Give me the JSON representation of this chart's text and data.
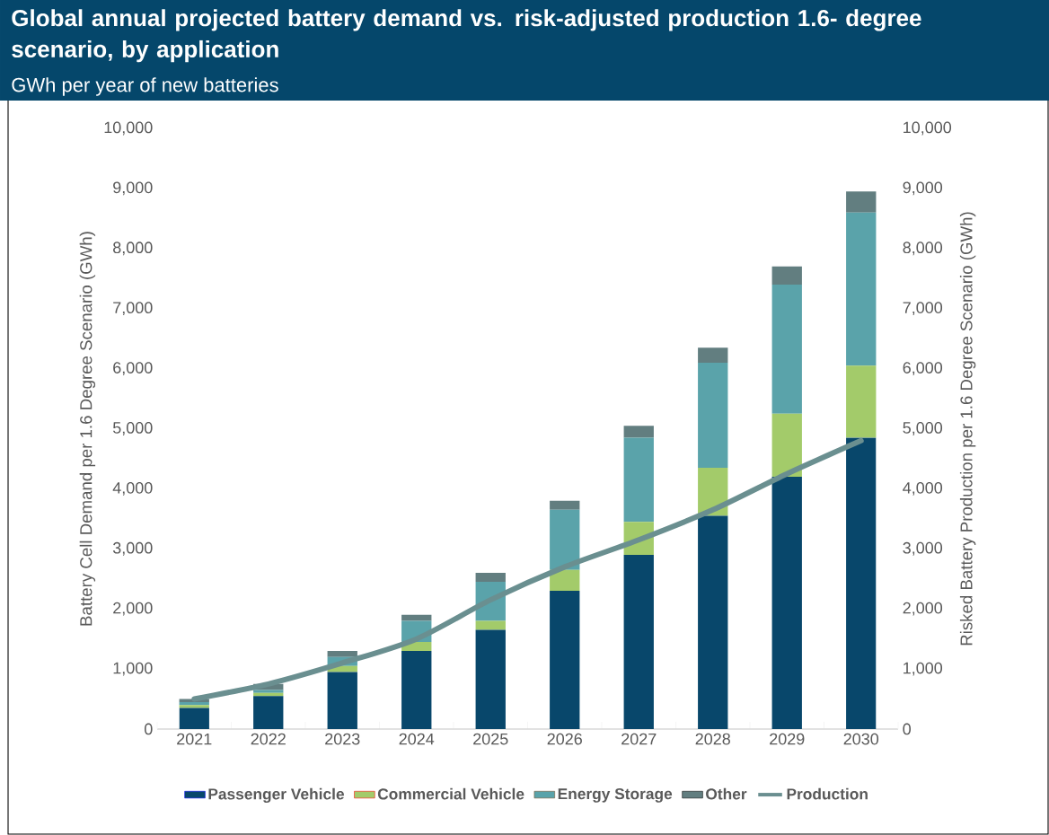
{
  "chart_data": {
    "type": "bar",
    "stacked": true,
    "title": "Global annual projected battery demand vs. risk-adjusted production 1.6- degree scenario, by application",
    "subtitle": "GWh per year of new batteries",
    "ylabel": "Battery Cell Demand per 1.6 Degree Scenario (GWh)",
    "y2label": "Risked Battery Production per 1.6 Degree Scenario (GWh)",
    "categories": [
      "2021",
      "2022",
      "2023",
      "2024",
      "2025",
      "2026",
      "2027",
      "2028",
      "2029",
      "2030"
    ],
    "series": [
      {
        "name": "Passenger Vehicle",
        "color": "#08476b",
        "values": [
          350,
          550,
          950,
          1300,
          1650,
          2300,
          2900,
          3550,
          4200,
          4850
        ]
      },
      {
        "name": "Commercial Vehicle",
        "color": "#a3cb6a",
        "values": [
          50,
          50,
          100,
          150,
          150,
          350,
          550,
          800,
          1050,
          1200
        ]
      },
      {
        "name": "Energy Storage",
        "color": "#5aa3aa",
        "values": [
          50,
          50,
          150,
          350,
          650,
          1000,
          1400,
          1750,
          2150,
          2550
        ]
      },
      {
        "name": "Other",
        "color": "#627e80",
        "values": [
          50,
          100,
          100,
          100,
          150,
          150,
          200,
          250,
          300,
          350
        ]
      },
      {
        "name": "Production",
        "type": "line",
        "axis": "y2",
        "color": "#6a8f90",
        "values": [
          500,
          750,
          1100,
          1500,
          2150,
          2700,
          3150,
          3650,
          4250,
          4800
        ]
      }
    ],
    "ylim": [
      0,
      10000
    ],
    "yticks": [
      {
        "value": 0,
        "label": "0"
      },
      {
        "value": 1000,
        "label": "1,000"
      },
      {
        "value": 2000,
        "label": "2,000"
      },
      {
        "value": 3000,
        "label": "3,000"
      },
      {
        "value": 4000,
        "label": "4,000"
      },
      {
        "value": 5000,
        "label": "5,000"
      },
      {
        "value": 6000,
        "label": "6,000"
      },
      {
        "value": 7000,
        "label": "7,000"
      },
      {
        "value": 8000,
        "label": "8,000"
      },
      {
        "value": 9000,
        "label": "9,000"
      },
      {
        "value": 10000,
        "label": "10,000"
      }
    ],
    "y2lim": [
      0,
      10000
    ],
    "y2ticks": [
      {
        "value": 0,
        "label": "0"
      },
      {
        "value": 1000,
        "label": "1,000"
      },
      {
        "value": 2000,
        "label": "2,000"
      },
      {
        "value": 3000,
        "label": "3,000"
      },
      {
        "value": 4000,
        "label": "4,000"
      },
      {
        "value": 5000,
        "label": "5,000"
      },
      {
        "value": 6000,
        "label": "6,000"
      },
      {
        "value": 7000,
        "label": "7,000"
      },
      {
        "value": 8000,
        "label": "8,000"
      },
      {
        "value": 9000,
        "label": "9,000"
      },
      {
        "value": 10000,
        "label": "10,000"
      }
    ],
    "legend": "bottom",
    "grid": false
  }
}
